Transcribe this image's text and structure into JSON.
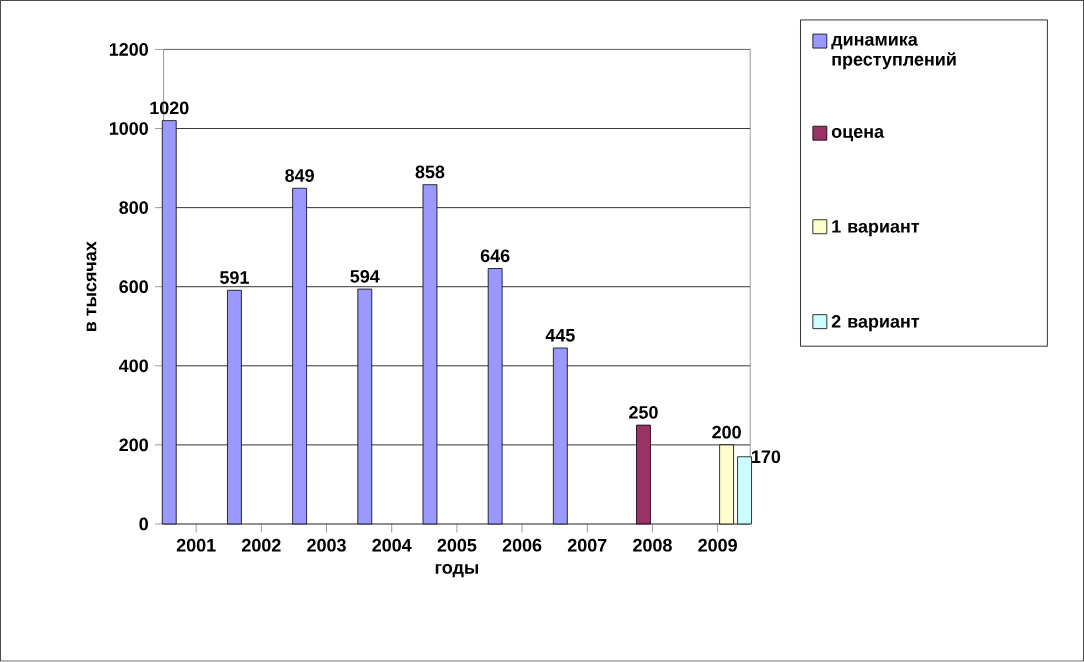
{
  "chart_data": {
    "type": "bar",
    "xlabel": "годы",
    "ylabel": "в тысячах",
    "categories": [
      "2001",
      "2002",
      "2003",
      "2004",
      "2005",
      "2006",
      "2007",
      "2008",
      "2009"
    ],
    "series": [
      {
        "name": "динамика преступлений",
        "color": "#9999ff",
        "values": [
          1020,
          591,
          849,
          594,
          858,
          646,
          445,
          null,
          null
        ]
      },
      {
        "name": "оцена",
        "color": "#993366",
        "values": [
          null,
          null,
          null,
          null,
          null,
          null,
          null,
          250,
          null
        ]
      },
      {
        "name": "1 вариант",
        "color": "#ffffcc",
        "values": [
          null,
          null,
          null,
          null,
          null,
          null,
          null,
          null,
          200
        ]
      },
      {
        "name": "2 вариант",
        "color": "#ccffff",
        "values": [
          null,
          null,
          null,
          null,
          null,
          null,
          null,
          null,
          170
        ]
      }
    ],
    "ylim": [
      0,
      1200
    ],
    "yticks": [
      0,
      200,
      400,
      600,
      800,
      1000,
      1200
    ],
    "grid": "y",
    "legend": "right",
    "data_labels": true
  }
}
